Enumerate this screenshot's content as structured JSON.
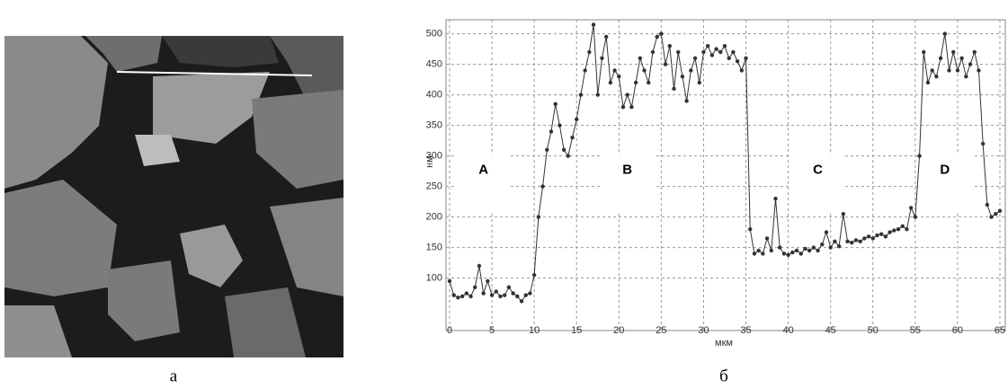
{
  "panels": {
    "a": {
      "label": "а"
    },
    "b": {
      "label": "б"
    }
  },
  "chart_data": {
    "type": "line",
    "x_label": "мкм",
    "y_label": "нм",
    "xlim": [
      0,
      65
    ],
    "ylim": [
      20,
      520
    ],
    "xticks": [
      0,
      5,
      10,
      15,
      20,
      25,
      30,
      35,
      40,
      45,
      50,
      55,
      60,
      65
    ],
    "yticks": [
      100,
      150,
      200,
      250,
      300,
      350,
      400,
      450,
      500
    ],
    "grid": true,
    "annotations": [
      "A",
      "B",
      "C",
      "D"
    ],
    "x": [
      0,
      0.5,
      1,
      1.5,
      2,
      2.5,
      3,
      3.5,
      4,
      4.5,
      5,
      5.5,
      6,
      6.5,
      7,
      7.5,
      8,
      8.5,
      9,
      9.5,
      10,
      10.5,
      11,
      11.5,
      12,
      12.5,
      13,
      13.5,
      14,
      14.5,
      15,
      15.5,
      16,
      16.5,
      17,
      17.5,
      18,
      18.5,
      19,
      19.5,
      20,
      20.5,
      21,
      21.5,
      22,
      22.5,
      23,
      23.5,
      24,
      24.5,
      25,
      25.5,
      26,
      26.5,
      27,
      27.5,
      28,
      28.5,
      29,
      29.5,
      30,
      30.5,
      31,
      31.5,
      32,
      32.5,
      33,
      33.5,
      34,
      34.5,
      35,
      35.5,
      36,
      36.5,
      37,
      37.5,
      38,
      38.5,
      39,
      39.5,
      40,
      40.5,
      41,
      41.5,
      42,
      42.5,
      43,
      43.5,
      44,
      44.5,
      45,
      45.5,
      46,
      46.5,
      47,
      47.5,
      48,
      48.5,
      49,
      49.5,
      50,
      50.5,
      51,
      51.5,
      52,
      52.5,
      53,
      53.5,
      54,
      54.5,
      55,
      55.5,
      56,
      56.5,
      57,
      57.5,
      58,
      58.5,
      59,
      59.5,
      60,
      60.5,
      61,
      61.5,
      62,
      62.5,
      63,
      63.5,
      64,
      64.5,
      65
    ],
    "series": [
      {
        "color": "#333333",
        "values": [
          95,
          72,
          68,
          70,
          75,
          70,
          85,
          120,
          75,
          95,
          72,
          78,
          70,
          72,
          85,
          75,
          70,
          62,
          72,
          75,
          105,
          200,
          250,
          310,
          340,
          385,
          350,
          310,
          300,
          330,
          360,
          400,
          440,
          470,
          515,
          400,
          460,
          495,
          420,
          440,
          430,
          380,
          400,
          380,
          420,
          460,
          440,
          420,
          470,
          495,
          500,
          450,
          480,
          410,
          470,
          430,
          390,
          440,
          460,
          420,
          470,
          480,
          465,
          475,
          470,
          480,
          460,
          470,
          455,
          440,
          460,
          180,
          140,
          145,
          140,
          165,
          145,
          230,
          150,
          140,
          138,
          142,
          145,
          140,
          148,
          145,
          150,
          145,
          155,
          175,
          150,
          160,
          152,
          205,
          160,
          158,
          162,
          160,
          165,
          168,
          165,
          170,
          172,
          168,
          175,
          178,
          180,
          185,
          180,
          215,
          200,
          300,
          470,
          420,
          440,
          430,
          460,
          500,
          440,
          470,
          440,
          460,
          430,
          450,
          470,
          440,
          320,
          220,
          200,
          205,
          210
        ]
      }
    ]
  }
}
